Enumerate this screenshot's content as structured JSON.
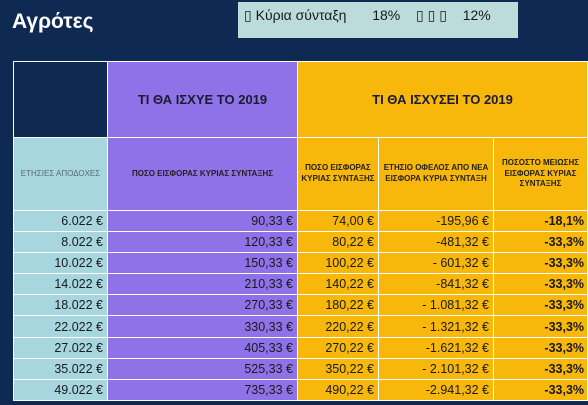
{
  "title": "Αγρότες",
  "note": {
    "icon": "box-glyph",
    "label": "Κύρια σύνταξη",
    "rate_2019": "18%",
    "arrow_glyphs": "▯ ▯ ▯",
    "rate_new": "12%"
  },
  "table": {
    "group_before": "ΤΙ ΘΑ ΙΣΧΥΕ ΤΟ 2019",
    "group_after": "ΤΙ ΘΑ ΙΣΧΥΣΕΙ ΤΟ 2019",
    "columns": [
      "ΕΤΗΣΙΕΣ ΑΠΟΔΟΧΕΣ",
      "ΠΟΣΟ ΕΙΣΦΟΡΑΣ ΚΥΡΙΑΣ ΣΥΝΤΑΞΗΣ",
      "ΠΟΣΟ ΕΙΣΦΟΡΑΣ ΚΥΡΙΑΣ ΣΥΝΤΑΞΗΣ",
      "ΕΤΗΣΙΟ ΟΦΕΛΟΣ ΑΠΟ ΝΕΑ ΕΙΣΦΟΡΑ ΚΥΡΙΑ ΣΥΝΤΑΞΗ",
      "ΠΟΣΟΣΤΟ ΜΕΙΩΣΗΣ ΕΙΣΦΟΡΑΣ ΚΥΡΙΑΣ ΣΥΝΤΑΞΗΣ"
    ],
    "rows": [
      [
        "6.022 €",
        "90,33 €",
        "74,00 €",
        "-195,96 €",
        "-18,1%"
      ],
      [
        "8.022 €",
        "120,33 €",
        "80,22 €",
        "-481,32 €",
        "-33,3%"
      ],
      [
        "10.022 €",
        "150,33 €",
        "100,22 €",
        "- 601,32 €",
        "-33,3%"
      ],
      [
        "14.022 €",
        "210,33 €",
        "140,22 €",
        "-841,32 €",
        "-33,3%"
      ],
      [
        "18.022 €",
        "270,33 €",
        "180,22 €",
        "- 1.081,32 €",
        "-33,3%"
      ],
      [
        "22.022 €",
        "330,33 €",
        "220,22 €",
        "- 1.321,32 €",
        "-33,3%"
      ],
      [
        "27.022 €",
        "405,33 €",
        "270,22 €",
        "-1.621,32 €",
        "-33,3%"
      ],
      [
        "35.022 €",
        "525,33 €",
        "350,22 €",
        "- 2.101,32 €",
        "-33,3%"
      ],
      [
        "49.022 €",
        "735,33 €",
        "490,22 €",
        "-2.941,32 €",
        "-33,3%"
      ]
    ]
  },
  "colors": {
    "background": "#0e2a52",
    "purple": "#9072e8",
    "orange": "#f8b70b",
    "teal": "#a8d6df",
    "note_bg": "#bcdcdc"
  }
}
